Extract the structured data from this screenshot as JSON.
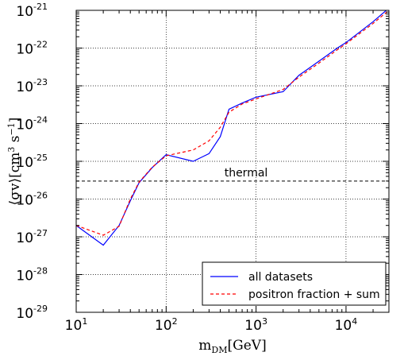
{
  "chart_data": {
    "type": "line",
    "x_scale": "log",
    "y_scale": "log",
    "xlim": [
      10,
      30000
    ],
    "ylim": [
      1e-29,
      1e-21
    ],
    "grid": true,
    "legend_position": "bottom-right",
    "x_ticks": [
      {
        "value": 10,
        "base": "10",
        "exp": "1"
      },
      {
        "value": 100,
        "base": "10",
        "exp": "2"
      },
      {
        "value": 1000,
        "base": "10",
        "exp": "3"
      },
      {
        "value": 10000,
        "base": "10",
        "exp": "4"
      }
    ],
    "y_ticks": [
      {
        "value": 1e-29,
        "base": "10",
        "exp": "-29"
      },
      {
        "value": 1e-28,
        "base": "10",
        "exp": "-28"
      },
      {
        "value": 1e-27,
        "base": "10",
        "exp": "-27"
      },
      {
        "value": 1e-26,
        "base": "10",
        "exp": "-26"
      },
      {
        "value": 1e-25,
        "base": "10",
        "exp": "-25"
      },
      {
        "value": 1e-24,
        "base": "10",
        "exp": "-24"
      },
      {
        "value": 1e-23,
        "base": "10",
        "exp": "-23"
      },
      {
        "value": 1e-22,
        "base": "10",
        "exp": "-22"
      },
      {
        "value": 1e-21,
        "base": "10",
        "exp": "-21"
      }
    ],
    "xlabel": {
      "main": "m",
      "sub": "DM",
      "unit": "[GeV]"
    },
    "ylabel": {
      "open": "⟨σv⟩",
      "unit_a": "[cm",
      "exp_a": "3",
      "unit_b": " s",
      "exp_b": "−1",
      "close": "]"
    },
    "series": [
      {
        "name": "all datasets",
        "color": "#0000ff",
        "style": "solid",
        "x": [
          10,
          20,
          30,
          40,
          50,
          70,
          100,
          200,
          300,
          400,
          500,
          700,
          1000,
          2000,
          3000,
          5000,
          8000,
          10000,
          20000,
          30000
        ],
        "y": [
          2e-27,
          6e-28,
          2e-27,
          9e-27,
          2.7e-26,
          6.8e-26,
          1.5e-25,
          1e-25,
          1.6e-25,
          4.5e-25,
          2.4e-24,
          3.5e-24,
          5e-24,
          7e-24,
          1.9e-23,
          4.5e-23,
          1e-22,
          1.4e-22,
          5e-22,
          1.15e-21
        ]
      },
      {
        "name": "positron fraction + sum",
        "color": "#ff0000",
        "style": "dashed",
        "x": [
          10,
          20,
          30,
          40,
          50,
          70,
          100,
          200,
          300,
          400,
          500,
          700,
          1000,
          2000,
          3000,
          5000,
          8000,
          10000,
          20000,
          30000
        ],
        "y": [
          2e-27,
          1.1e-27,
          1.9e-27,
          1e-26,
          2.8e-26,
          7e-26,
          1.4e-25,
          2e-25,
          3.5e-25,
          8e-25,
          2e-24,
          3.3e-24,
          4.5e-24,
          8e-24,
          1.7e-23,
          4e-23,
          9e-23,
          1.3e-22,
          4.5e-22,
          1e-21
        ]
      }
    ],
    "annotations": [
      {
        "text": "thermal",
        "y": 3e-26,
        "color": "#000000",
        "style": "dashed"
      }
    ]
  }
}
